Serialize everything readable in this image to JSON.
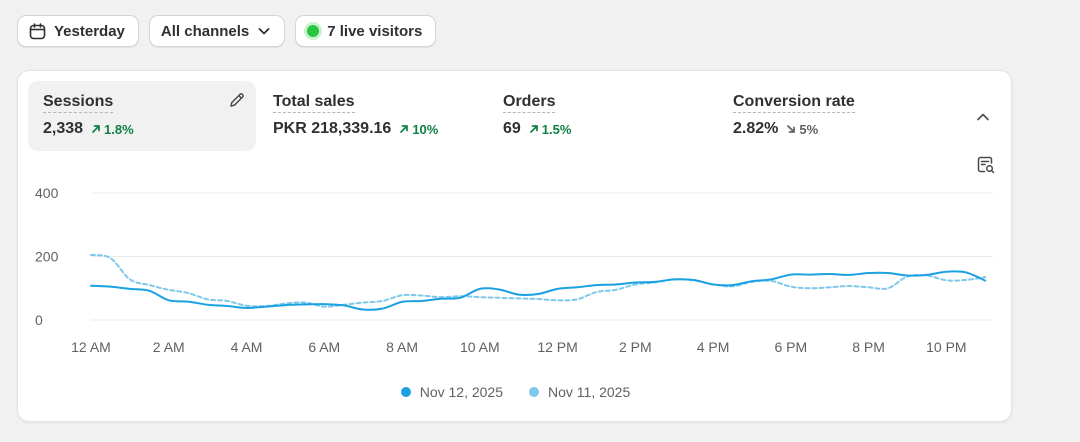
{
  "filters": {
    "date_label": "Yesterday",
    "channel_label": "All channels",
    "live_label": "7 live visitors"
  },
  "metrics": [
    {
      "label": "Sessions",
      "value": "2,338",
      "change": "1.8%",
      "direction": "up"
    },
    {
      "label": "Total sales",
      "value": "PKR 218,339.16",
      "change": "10%",
      "direction": "up"
    },
    {
      "label": "Orders",
      "value": "69",
      "change": "1.5%",
      "direction": "up"
    },
    {
      "label": "Conversion rate",
      "value": "2.82%",
      "change": "5%",
      "direction": "down"
    }
  ],
  "colors": {
    "current": "#1ba1e2",
    "previous": "#7ec8ea",
    "up": "#108043"
  },
  "chart_data": {
    "type": "line",
    "title": "",
    "xlabel": "",
    "ylabel": "",
    "ylim": [
      0,
      400
    ],
    "y_ticks": [
      "0",
      "200",
      "400"
    ],
    "x_tick_labels": [
      "12 AM",
      "2 AM",
      "4 AM",
      "6 AM",
      "8 AM",
      "10 AM",
      "12 PM",
      "2 PM",
      "4 PM",
      "6 PM",
      "8 PM",
      "10 PM"
    ],
    "x_hours": [
      0,
      0.5,
      1,
      1.5,
      2,
      2.5,
      3,
      3.5,
      4,
      4.5,
      5,
      5.5,
      6,
      6.5,
      7,
      7.5,
      8,
      8.5,
      9,
      9.5,
      10,
      10.5,
      11,
      11.5,
      12,
      12.5,
      13,
      13.5,
      14,
      14.5,
      15,
      15.5,
      16,
      16.5,
      17,
      17.5,
      18,
      18.5,
      19,
      19.5,
      20,
      20.5,
      21,
      21.5,
      22,
      22.5,
      23
    ],
    "series": [
      {
        "name": "Nov 12, 2025",
        "style": "solid",
        "values": [
          108,
          105,
          98,
          92,
          62,
          58,
          48,
          44,
          38,
          42,
          47,
          49,
          50,
          46,
          33,
          36,
          57,
          60,
          67,
          70,
          98,
          96,
          80,
          82,
          98,
          103,
          110,
          112,
          118,
          120,
          128,
          126,
          112,
          110,
          122,
          128,
          143,
          143,
          145,
          142,
          148,
          148,
          140,
          142,
          152,
          150,
          124
        ]
      },
      {
        "name": "Nov 11, 2025",
        "style": "dashed",
        "values": [
          205,
          195,
          128,
          110,
          95,
          85,
          65,
          60,
          45,
          44,
          52,
          55,
          42,
          48,
          55,
          60,
          78,
          77,
          72,
          75,
          72,
          70,
          68,
          66,
          62,
          65,
          88,
          95,
          112,
          118,
          128,
          125,
          112,
          106,
          120,
          123,
          105,
          100,
          103,
          107,
          103,
          100,
          137,
          140,
          125,
          126,
          135
        ]
      }
    ]
  }
}
